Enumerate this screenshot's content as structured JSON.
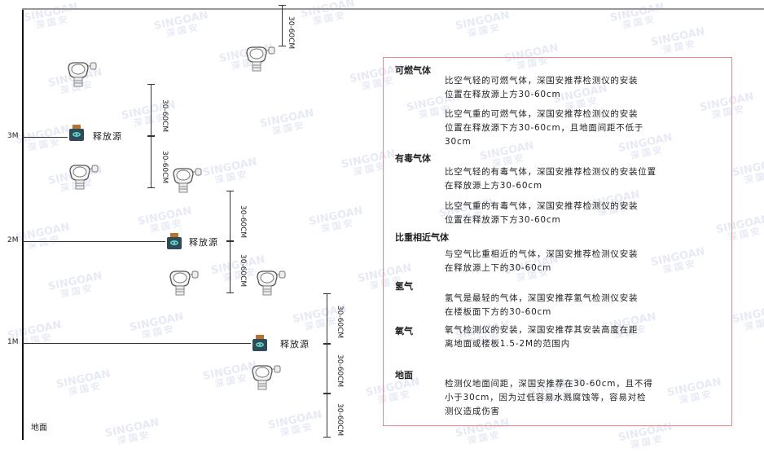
{
  "watermark": {
    "brand": "SINGOAN",
    "cn": "深国安"
  },
  "levels": [
    "3M",
    "2M",
    "1M"
  ],
  "ground_label": "地面",
  "source_label": "释放源",
  "dimension_label": "30-60CM",
  "notes": {
    "combustible": {
      "title": "可燃气体",
      "lighter_1": "比空气轻的可燃气体，深国安推荐检测仪的安装",
      "lighter_2": "位置在释放源上方30-60cm",
      "heavier_1": "比空气重的可燃气体，深国安推荐检测仪的安装",
      "heavier_2": "位置在释放源下方30-60cm，且地面间距不低于",
      "heavier_3": "30cm"
    },
    "toxic": {
      "title": "有毒气体",
      "lighter_1": "比空气轻的有毒气体，深国安推荐检测仪的安装位置",
      "lighter_2": "在释放源上方30-60cm",
      "heavier_1": "比空气重的有毒气体，深国安推荐检测仪的安装",
      "heavier_2": "位置在释放源下方30-60cm"
    },
    "similar": {
      "title": "比重相近气体",
      "line_1": "与空气比重相近的气体，深国安推荐检测仪安装",
      "line_2": "在释放源上下的30-60cm"
    },
    "hydrogen": {
      "title": "氢气",
      "line_1": "氢气是最轻的气体，深国安推荐氢气检测仪安装",
      "line_2": "在楼板面下方的30-60cm"
    },
    "oxygen": {
      "title": "氧气",
      "line_1": "氧气检测仪的安装，深国安推荐其安装高度在距",
      "line_2": "离地面或楼板1.5-2M的范围内"
    },
    "ground": {
      "title": "地面",
      "line_1": "检测仪地面间距，深国安推荐在30-60cm，且不得",
      "line_2": "小于30cm，因为过低容易水溅腐蚀等，容易对检",
      "line_3": "测仪造成伤害"
    }
  },
  "colors": {
    "frame_border": "#e88888",
    "source_body": "#2f4a5a",
    "source_cap": "#b87333",
    "source_face": "#5fd0c0"
  }
}
